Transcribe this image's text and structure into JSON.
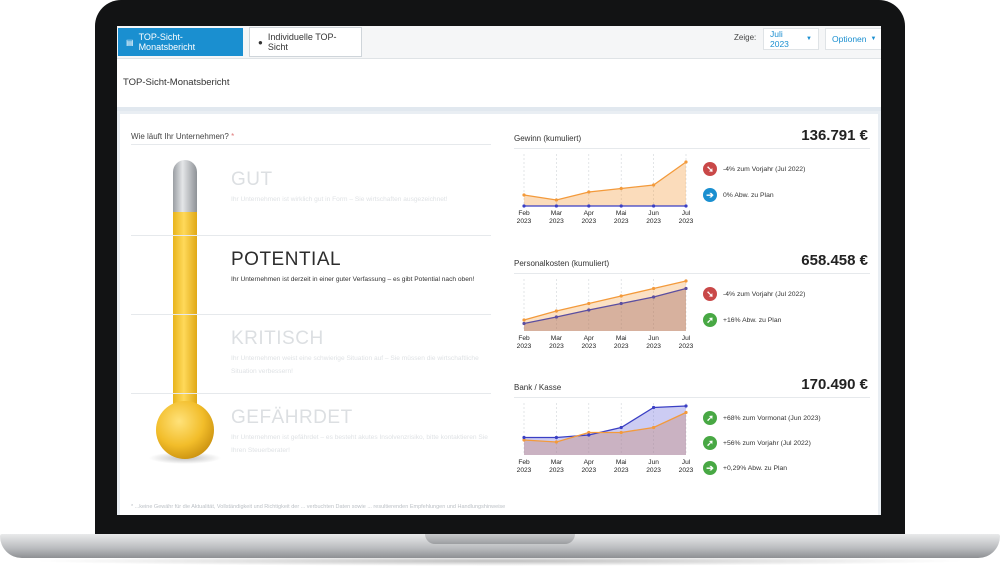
{
  "tabs": [
    {
      "label": "TOP-Sicht-Monatsbericht",
      "icon": "document-icon"
    },
    {
      "label": "Individuelle TOP-Sicht",
      "icon": "user-icon"
    }
  ],
  "toolbar": {
    "zeige_label": "Zeige:",
    "month_value": "Juli 2023",
    "options_label": "Optionen"
  },
  "page_title": "TOP-Sicht-Monatsbericht",
  "left": {
    "question": "Wie läuft Ihr Unternehmen?",
    "question_star": "*",
    "levels": [
      {
        "title": "GUT",
        "desc": "Ihr Unternehmen ist wirklich gut in Form – Sie wirtschaften ausgezeichnet!"
      },
      {
        "title": "POTENTIAL",
        "desc": "Ihr Unternehmen ist derzeit in einer guter Verfassung – es gibt Potential nach oben!"
      },
      {
        "title": "KRITISCH",
        "desc": "Ihr Unternehmen weist eine schwierige Situation auf – Sie müssen die wirtschaftliche Situation verbessern!"
      },
      {
        "title": "GEFÄHRDET",
        "desc": "Ihr Unternehmen ist gefährdet – es besteht akutes Insolvenzrisiko, bitte kontaktieren Sie Ihren Steuerberater!"
      }
    ],
    "active_level": "POTENTIAL",
    "thermometer_fill": 0.8,
    "footnote": "* ...keine Gewähr für die Aktualität, Vollständigkeit und Richtigkeit der ... verbuchten Daten sowie ... resultierenden Empfehlungen und Handlungshinweise"
  },
  "x_labels": [
    {
      "m": "Feb",
      "y": "2023"
    },
    {
      "m": "Mar",
      "y": "2023"
    },
    {
      "m": "Apr",
      "y": "2023"
    },
    {
      "m": "Mai",
      "y": "2023"
    },
    {
      "m": "Jun",
      "y": "2023"
    },
    {
      "m": "Jul",
      "y": "2023"
    }
  ],
  "colors": {
    "orange": "#f39a3b",
    "purple": "#5b4ea0",
    "blue_line": "#3a3fc4",
    "accent": "#1a8fd0"
  },
  "metrics": [
    {
      "label": "Gewinn (kumuliert)",
      "value": "136.791 €",
      "stats": [
        {
          "icon": "arrow-down-right-icon",
          "color": "red",
          "text": "-4% zum Vorjahr (Jul 2022)"
        },
        {
          "icon": "arrow-right-icon",
          "color": "blue",
          "text": "0% Abw. zu Plan"
        }
      ]
    },
    {
      "label": "Personalkosten (kumuliert)",
      "value": "658.458 €",
      "stats": [
        {
          "icon": "arrow-down-right-icon",
          "color": "red",
          "text": "-4% zum Vorjahr (Jul 2022)"
        },
        {
          "icon": "arrow-up-right-icon",
          "color": "green",
          "text": "+16% Abw. zu Plan"
        }
      ]
    },
    {
      "label": "Bank / Kasse",
      "value": "170.490 €",
      "stats": [
        {
          "icon": "arrow-up-right-icon",
          "color": "green",
          "text": "+68% zum Vormonat (Jun 2023)"
        },
        {
          "icon": "arrow-up-right-icon",
          "color": "green",
          "text": "+56% zum Vorjahr (Jul 2022)"
        },
        {
          "icon": "arrow-right-icon",
          "color": "green",
          "text": "+0,29% Abw. zu Plan"
        }
      ]
    }
  ],
  "chart_data": [
    {
      "type": "area",
      "title": "Gewinn (kumuliert)",
      "categories": [
        "Feb 2023",
        "Mar 2023",
        "Apr 2023",
        "Mai 2023",
        "Jun 2023",
        "Jul 2023"
      ],
      "series": [
        {
          "values": [
            0.22,
            0.12,
            0.28,
            0.35,
            0.42,
            0.88
          ]
        },
        {
          "values": [
            0,
            0,
            0,
            0,
            0,
            0
          ]
        }
      ],
      "ylim": [
        0,
        1
      ]
    },
    {
      "type": "area",
      "title": "Personalkosten (kumuliert)",
      "categories": [
        "Feb 2023",
        "Mar 2023",
        "Apr 2023",
        "Mai 2023",
        "Jun 2023",
        "Jul 2023"
      ],
      "series": [
        {
          "values": [
            0.22,
            0.4,
            0.55,
            0.7,
            0.85,
            1.0
          ]
        },
        {
          "values": [
            0.15,
            0.28,
            0.42,
            0.55,
            0.68,
            0.85
          ]
        }
      ],
      "ylim": [
        0,
        1
      ]
    },
    {
      "type": "area",
      "title": "Bank / Kasse",
      "categories": [
        "Feb 2023",
        "Mar 2023",
        "Apr 2023",
        "Mai 2023",
        "Jun 2023",
        "Jul 2023"
      ],
      "series": [
        {
          "values": [
            0.3,
            0.26,
            0.45,
            0.45,
            0.55,
            0.85
          ]
        },
        {
          "values": [
            0.35,
            0.35,
            0.4,
            0.55,
            0.95,
            0.98
          ]
        }
      ],
      "ylim": [
        0,
        1
      ]
    }
  ]
}
